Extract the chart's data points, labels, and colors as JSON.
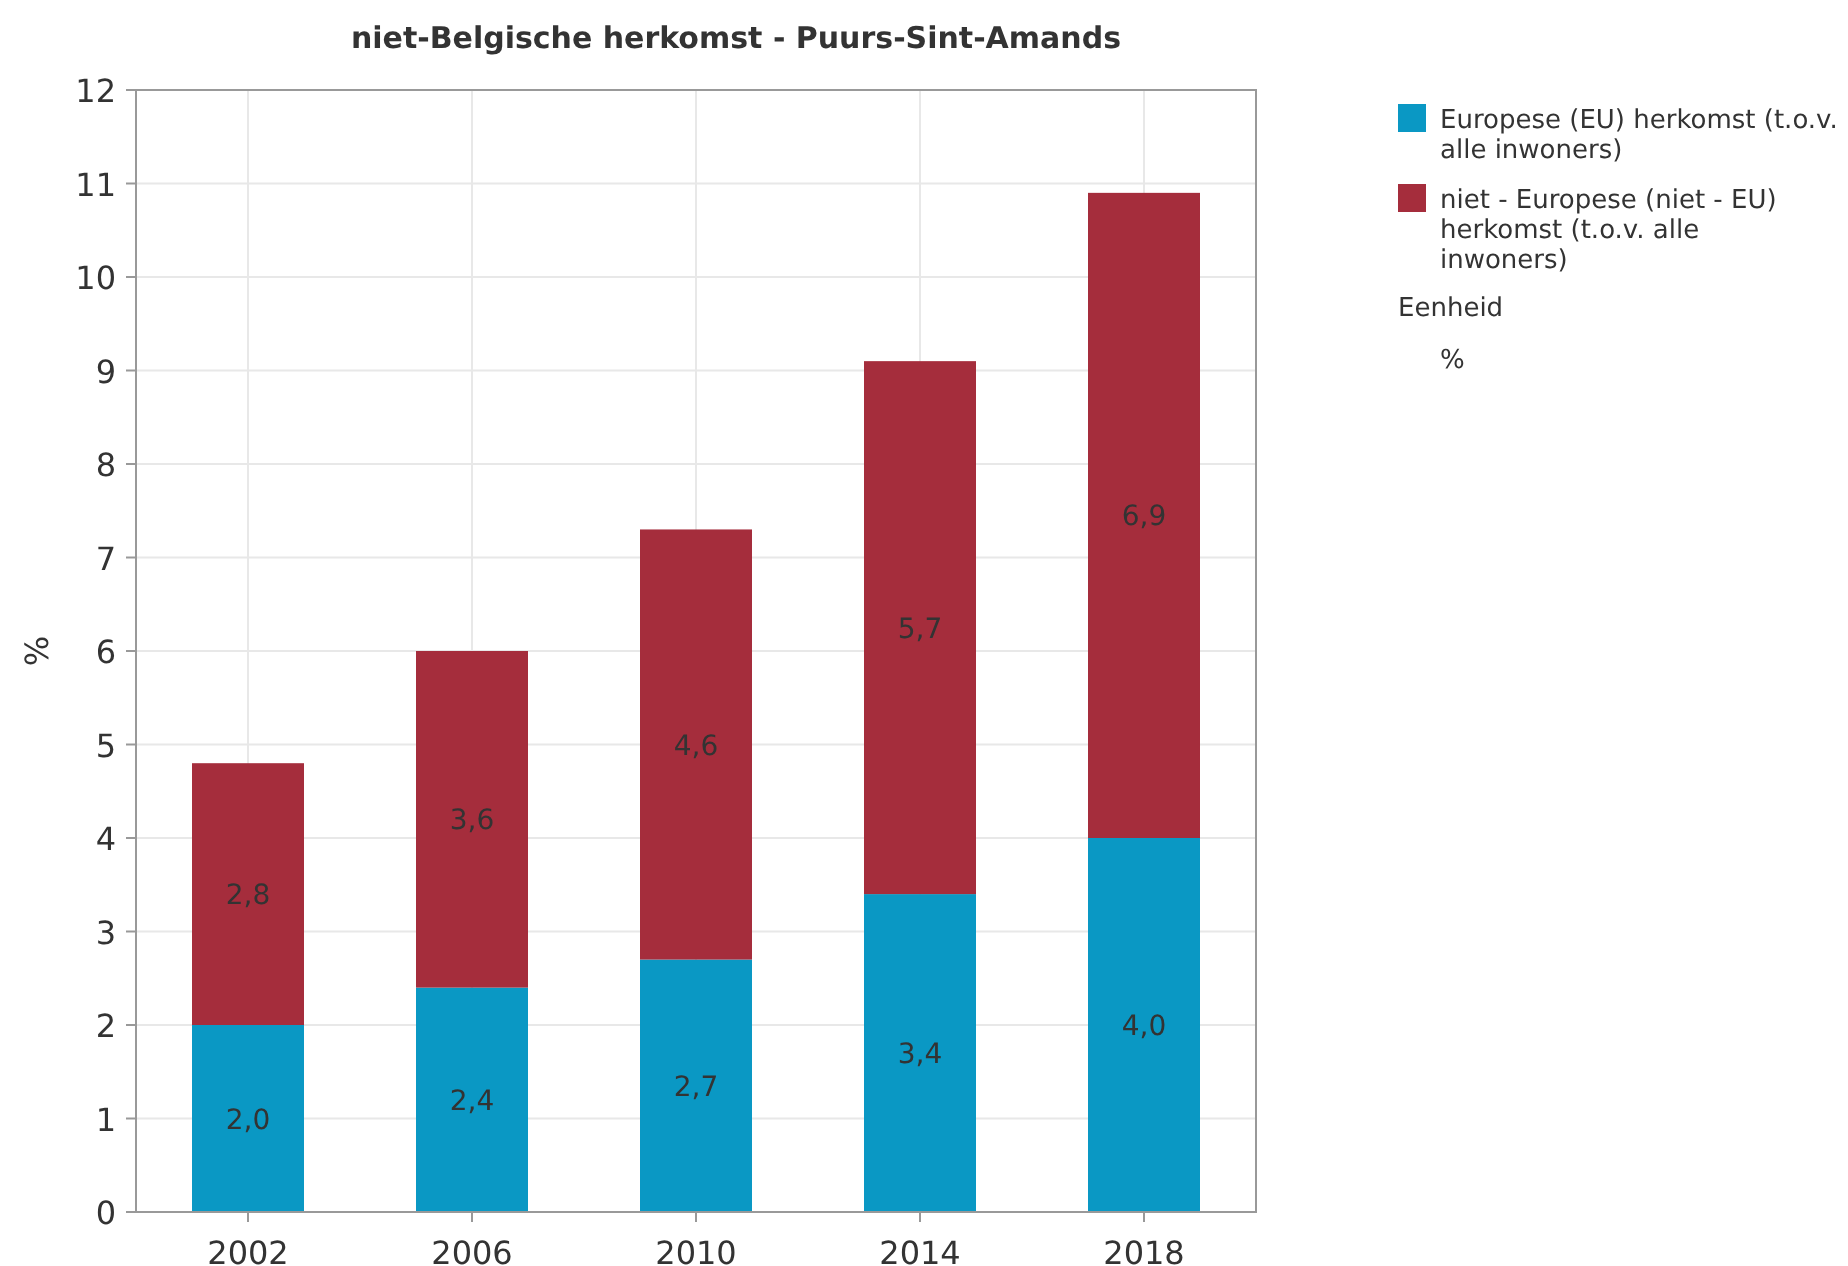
{
  "chart_data": {
    "type": "bar",
    "title": "niet-Belgische herkomst - Puurs-Sint-Amands",
    "ylabel": "%",
    "categories": [
      "2002",
      "2006",
      "2010",
      "2014",
      "2018"
    ],
    "stacked": true,
    "series": [
      {
        "name": "Europese (EU) herkomst (t.o.v. alle inwoners)",
        "color": "#0a98c4",
        "values": [
          2.0,
          2.4,
          2.7,
          3.4,
          4.0
        ],
        "value_labels": [
          "2,0",
          "2,4",
          "2,7",
          "3,4",
          "4,0"
        ]
      },
      {
        "name": "niet - Europese (niet - EU) herkomst (t.o.v. alle inwoners)",
        "color": "#a52d3c",
        "values": [
          2.8,
          3.6,
          4.6,
          5.7,
          6.9
        ],
        "value_labels": [
          "2,8",
          "3,6",
          "4,6",
          "5,7",
          "6,9"
        ]
      }
    ],
    "ylim": [
      0,
      12
    ],
    "yticks": [
      0,
      1,
      2,
      3,
      4,
      5,
      6,
      7,
      8,
      9,
      10,
      11,
      12
    ],
    "grid": true,
    "legend": "right",
    "legend_title": "Eenheid",
    "annotations": [
      "%"
    ]
  }
}
